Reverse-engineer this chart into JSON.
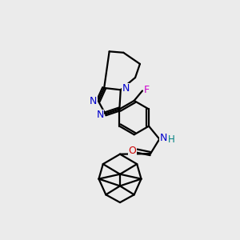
{
  "background_color": "#ebebeb",
  "bond_color": "#000000",
  "N_color": "#0000cc",
  "O_color": "#cc0000",
  "F_color": "#cc00cc",
  "H_color": "#008080",
  "line_width": 1.6,
  "figsize": [
    3.0,
    3.0
  ],
  "dpi": 100,
  "xlim": [
    0,
    10
  ],
  "ylim": [
    0,
    10
  ],
  "font_size": 8.5
}
